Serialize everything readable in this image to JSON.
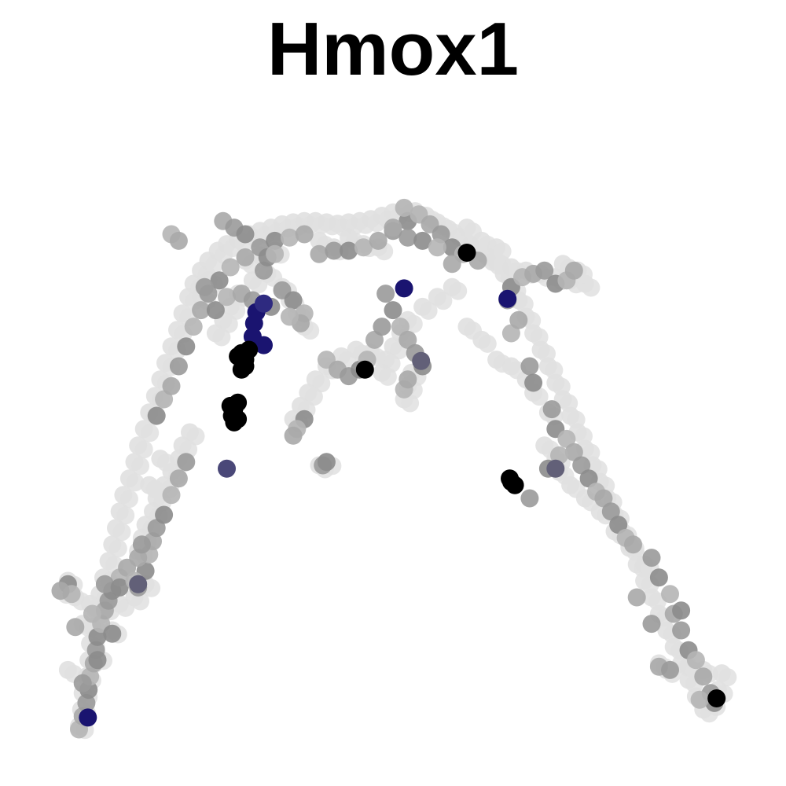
{
  "chart_data": {
    "type": "scatter",
    "title": "Hmox1",
    "xlabel": "",
    "ylabel": "",
    "grid": false,
    "legend": "none",
    "axes_visible": false,
    "xlim": [
      0,
      100
    ],
    "ylim": [
      0,
      100
    ],
    "color_scale": [
      "#e0e0e0",
      "#9a9a9a",
      "#1a1470",
      "#000000"
    ],
    "background_path_points": [
      [
        7.5,
        5.5
      ],
      [
        7.8,
        8
      ],
      [
        8,
        10.5
      ],
      [
        8.5,
        13
      ],
      [
        8.8,
        15.5
      ],
      [
        9,
        18
      ],
      [
        9.3,
        20.5
      ],
      [
        9.8,
        23
      ],
      [
        10.3,
        25.5
      ],
      [
        10.8,
        28
      ],
      [
        11.5,
        30.5
      ],
      [
        12,
        33
      ],
      [
        12.5,
        35.5
      ],
      [
        13,
        38
      ],
      [
        13.5,
        40.5
      ],
      [
        14.3,
        43
      ],
      [
        15,
        45.5
      ],
      [
        15.5,
        48
      ],
      [
        16.3,
        50.5
      ],
      [
        17,
        53
      ],
      [
        17.8,
        55.5
      ],
      [
        18.5,
        58
      ],
      [
        19.2,
        60.5
      ],
      [
        20,
        63
      ],
      [
        20.8,
        65.5
      ],
      [
        21.5,
        68
      ],
      [
        22.3,
        70.5
      ],
      [
        23,
        72.5
      ],
      [
        24,
        74.5
      ],
      [
        25,
        76
      ],
      [
        26.3,
        77.5
      ],
      [
        27.5,
        78.5
      ],
      [
        29,
        79.2
      ],
      [
        30.5,
        80
      ],
      [
        32,
        80.5
      ],
      [
        33.5,
        81
      ],
      [
        35,
        81.5
      ],
      [
        36.5,
        81.8
      ],
      [
        38,
        82
      ],
      [
        39.5,
        82
      ],
      [
        41,
        81.8
      ],
      [
        42.5,
        81.6
      ],
      [
        44,
        81.8
      ],
      [
        45.5,
        82
      ],
      [
        47,
        82.3
      ],
      [
        48.5,
        82.8
      ],
      [
        50,
        83.3
      ],
      [
        51.5,
        83.8
      ],
      [
        53,
        83.5
      ],
      [
        54.5,
        82.8
      ],
      [
        56,
        81.8
      ],
      [
        57.5,
        80.8
      ],
      [
        59,
        79.6
      ],
      [
        60.5,
        78.4
      ],
      [
        62,
        77.2
      ],
      [
        63.5,
        75.8
      ],
      [
        65,
        74
      ],
      [
        66,
        72
      ],
      [
        67,
        70
      ],
      [
        68,
        67.5
      ],
      [
        69,
        65
      ],
      [
        70,
        62.5
      ],
      [
        71,
        60
      ],
      [
        72,
        57.5
      ],
      [
        73,
        55
      ],
      [
        74,
        52.5
      ],
      [
        75,
        50
      ],
      [
        76,
        47.5
      ],
      [
        77,
        45
      ],
      [
        78,
        42.5
      ],
      [
        79,
        40
      ],
      [
        80,
        37.5
      ],
      [
        81,
        35
      ],
      [
        82,
        32.5
      ],
      [
        83,
        30
      ],
      [
        84,
        27.5
      ],
      [
        85,
        25
      ],
      [
        86,
        22.5
      ],
      [
        87,
        20
      ],
      [
        88,
        17.5
      ],
      [
        89,
        15
      ],
      [
        90,
        12.5
      ],
      [
        91,
        10
      ],
      [
        92,
        8
      ],
      [
        93,
        9
      ],
      [
        94,
        11
      ],
      [
        94.5,
        13.5
      ],
      [
        92,
        14
      ],
      [
        90,
        14.5
      ],
      [
        64,
        76
      ],
      [
        66,
        75
      ],
      [
        68,
        74.5
      ],
      [
        70,
        74
      ],
      [
        72,
        73.5
      ],
      [
        74,
        73
      ],
      [
        76,
        72.5
      ],
      [
        58,
        72
      ],
      [
        56,
        70.5
      ],
      [
        54,
        69
      ],
      [
        52,
        67
      ],
      [
        51,
        65
      ],
      [
        50,
        63
      ],
      [
        49,
        61
      ],
      [
        48.5,
        59
      ],
      [
        47,
        62
      ],
      [
        45,
        62.5
      ],
      [
        43,
        61.5
      ],
      [
        41,
        60
      ],
      [
        39.5,
        58
      ],
      [
        38.5,
        56
      ],
      [
        37.5,
        54
      ],
      [
        36.5,
        52
      ],
      [
        52.5,
        59
      ],
      [
        52,
        57
      ],
      [
        51.5,
        55
      ],
      [
        35,
        72
      ],
      [
        36,
        70
      ],
      [
        37,
        68
      ],
      [
        38,
        66
      ],
      [
        22.5,
        50
      ],
      [
        21.5,
        48
      ],
      [
        21,
        46
      ],
      [
        20,
        44
      ],
      [
        19,
        42
      ],
      [
        18,
        40
      ],
      [
        17.5,
        38
      ],
      [
        16.5,
        36
      ],
      [
        16,
        34
      ],
      [
        15.5,
        32
      ],
      [
        6,
        27.5
      ],
      [
        5,
        26
      ],
      [
        7,
        25
      ],
      [
        9,
        24
      ],
      [
        11,
        23.5
      ],
      [
        13,
        24
      ],
      [
        15,
        25
      ],
      [
        16.5,
        27
      ],
      [
        8,
        21
      ],
      [
        12,
        20
      ],
      [
        10,
        16
      ],
      [
        6,
        14
      ],
      [
        44,
        79.5
      ],
      [
        46,
        78.5
      ],
      [
        48,
        78
      ],
      [
        40,
        79
      ],
      [
        42,
        78
      ],
      [
        60,
        81
      ],
      [
        62,
        79
      ],
      [
        64,
        78
      ],
      [
        73,
        75.5
      ],
      [
        75,
        74.5
      ],
      [
        33,
        74
      ],
      [
        31,
        73
      ],
      [
        29,
        71
      ],
      [
        28,
        69
      ],
      [
        27,
        67
      ],
      [
        26,
        65
      ],
      [
        30,
        76
      ],
      [
        32,
        76.8
      ],
      [
        34,
        77.5
      ],
      [
        25,
        73
      ],
      [
        24,
        70.5
      ],
      [
        40,
        45
      ],
      [
        41,
        45.5
      ],
      [
        17,
        42
      ],
      [
        18.5,
        46
      ],
      [
        86,
        15
      ],
      [
        87,
        14
      ],
      [
        72.5,
        44
      ],
      [
        74,
        42
      ],
      [
        76,
        40
      ],
      [
        78,
        38
      ],
      [
        80,
        35
      ],
      [
        82,
        33
      ],
      [
        84,
        30
      ],
      [
        60,
        66
      ],
      [
        62,
        64
      ],
      [
        64,
        61
      ],
      [
        66,
        60
      ],
      [
        68,
        58
      ],
      [
        69,
        56
      ],
      [
        71,
        53
      ],
      [
        70.5,
        48
      ],
      [
        72,
        46
      ]
    ],
    "mid_grey_points": [
      [
        7.5,
        5
      ],
      [
        8,
        7
      ],
      [
        8.5,
        9
      ],
      [
        8.8,
        11
      ],
      [
        9,
        13
      ],
      [
        9.5,
        15
      ],
      [
        9.8,
        17
      ],
      [
        10,
        19
      ],
      [
        10.5,
        21
      ],
      [
        11,
        23
      ],
      [
        11.5,
        24.5
      ],
      [
        12,
        26
      ],
      [
        13,
        28
      ],
      [
        14,
        29.5
      ],
      [
        15.5,
        26.5
      ],
      [
        16.5,
        29
      ],
      [
        17,
        31.5
      ],
      [
        17.5,
        33.5
      ],
      [
        18,
        35.5
      ],
      [
        19,
        37.5
      ],
      [
        20,
        40.5
      ],
      [
        21,
        43
      ],
      [
        22,
        45.5
      ],
      [
        18,
        52.5
      ],
      [
        19,
        55
      ],
      [
        20,
        57
      ],
      [
        21,
        60
      ],
      [
        22,
        63
      ],
      [
        23,
        66
      ],
      [
        24,
        68.5
      ],
      [
        25,
        71
      ],
      [
        26.5,
        73
      ],
      [
        28,
        75
      ],
      [
        30,
        76.5
      ],
      [
        32,
        78
      ],
      [
        34,
        79
      ],
      [
        36,
        79.5
      ],
      [
        38,
        80
      ],
      [
        35,
        71.5
      ],
      [
        36.5,
        70
      ],
      [
        38,
        68
      ],
      [
        37.5,
        66.5
      ],
      [
        32.5,
        74.5
      ],
      [
        33,
        76.5
      ],
      [
        34,
        77
      ],
      [
        40,
        77
      ],
      [
        42,
        77.5
      ],
      [
        44,
        77.5
      ],
      [
        46,
        78
      ],
      [
        48,
        79
      ],
      [
        50,
        80.5
      ],
      [
        52,
        82
      ],
      [
        53.5,
        83
      ],
      [
        55,
        81.5
      ],
      [
        56.5,
        80
      ],
      [
        58,
        78
      ],
      [
        59.5,
        77
      ],
      [
        61.5,
        76
      ],
      [
        49,
        71
      ],
      [
        50,
        68.5
      ],
      [
        51,
        66
      ],
      [
        52,
        64
      ],
      [
        53,
        62
      ],
      [
        54,
        60
      ],
      [
        41,
        61
      ],
      [
        42.5,
        59.5
      ],
      [
        44,
        58.5
      ],
      [
        45.5,
        59.5
      ],
      [
        46.5,
        61
      ],
      [
        47.5,
        64
      ],
      [
        48.5,
        66
      ],
      [
        38,
        52
      ],
      [
        37,
        50.5
      ],
      [
        36.5,
        49.5
      ],
      [
        40.5,
        45
      ],
      [
        41,
        45.5
      ],
      [
        51.5,
        56.5
      ],
      [
        52,
        58
      ],
      [
        68.5,
        60
      ],
      [
        69,
        57.5
      ],
      [
        66,
        65
      ],
      [
        67,
        67
      ],
      [
        65.5,
        70
      ],
      [
        66,
        72
      ],
      [
        67.5,
        73.5
      ],
      [
        69,
        74
      ],
      [
        70.5,
        74.5
      ],
      [
        72,
        72.5
      ],
      [
        73.5,
        73
      ],
      [
        74.5,
        74.5
      ],
      [
        71.5,
        53.5
      ],
      [
        72,
        50.5
      ],
      [
        73.5,
        49
      ],
      [
        74.5,
        47
      ],
      [
        75.5,
        45
      ],
      [
        76.5,
        43
      ],
      [
        77.5,
        41
      ],
      [
        78.5,
        40
      ],
      [
        79.5,
        38
      ],
      [
        80.5,
        36
      ],
      [
        81.5,
        34
      ],
      [
        82.5,
        33
      ],
      [
        85,
        31
      ],
      [
        86,
        28
      ],
      [
        87.5,
        25.5
      ],
      [
        88,
        22.5
      ],
      [
        89,
        20
      ],
      [
        90,
        17
      ],
      [
        91,
        15.5
      ],
      [
        92,
        13
      ],
      [
        93,
        10.5
      ],
      [
        93.5,
        9
      ],
      [
        91.5,
        9.5
      ],
      [
        86,
        14.5
      ],
      [
        87.5,
        14
      ],
      [
        6,
        27
      ],
      [
        6.5,
        25.5
      ],
      [
        5,
        26
      ],
      [
        11,
        27
      ],
      [
        13,
        26.5
      ],
      [
        15,
        27.5
      ],
      [
        15.5,
        31
      ],
      [
        16,
        33
      ],
      [
        10,
        15.5
      ],
      [
        9.3,
        22.5
      ],
      [
        7,
        20.5
      ],
      [
        8,
        12
      ],
      [
        12,
        19.5
      ],
      [
        20,
        80
      ],
      [
        21,
        79
      ],
      [
        24.5,
        72
      ],
      [
        26,
        68.5
      ],
      [
        27.5,
        70.5
      ],
      [
        29.5,
        71
      ],
      [
        31,
        70
      ],
      [
        33.5,
        69
      ],
      [
        36,
        67.5
      ],
      [
        27,
        82
      ],
      [
        28.5,
        81
      ],
      [
        30,
        80
      ],
      [
        51.5,
        84
      ],
      [
        50,
        81
      ],
      [
        52,
        79.5
      ],
      [
        54,
        79
      ],
      [
        56,
        78
      ],
      [
        58,
        75.5
      ],
      [
        68.5,
        40
      ],
      [
        71,
        44.5
      ],
      [
        72.5,
        46.5
      ],
      [
        83,
        25
      ],
      [
        85,
        21
      ],
      [
        89,
        23
      ]
    ],
    "high_points": [
      [
        31.5,
        68.2,
        "blue"
      ],
      [
        31.2,
        66.5,
        "blue"
      ],
      [
        31,
        64.5,
        "blue"
      ],
      [
        32.5,
        63.2,
        "blue"
      ],
      [
        32.5,
        69.5,
        "navy-light"
      ],
      [
        29.5,
        62
      ],
      [
        30,
        61
      ],
      [
        29,
        61.5
      ],
      [
        30.5,
        62.5
      ],
      [
        30,
        60
      ],
      [
        29.5,
        59.5
      ],
      [
        28.5,
        53.5
      ],
      [
        28.2,
        52.5
      ],
      [
        28.5,
        51.5
      ],
      [
        29,
        52
      ],
      [
        28,
        54
      ],
      [
        29,
        54.5
      ],
      [
        27.5,
        44.5,
        "slate"
      ],
      [
        46.2,
        59.5
      ],
      [
        53.8,
        60.8,
        "slate-light"
      ],
      [
        51.5,
        71.8,
        "blue"
      ],
      [
        60,
        77.2
      ],
      [
        65.5,
        70.2,
        "blue"
      ],
      [
        66,
        42.5
      ],
      [
        66.5,
        42
      ],
      [
        65.8,
        43
      ],
      [
        72,
        44.5,
        "slate-light"
      ],
      [
        15.5,
        27,
        "slate-light"
      ],
      [
        8.7,
        6.8,
        "blue"
      ],
      [
        93.8,
        9.7
      ]
    ]
  }
}
